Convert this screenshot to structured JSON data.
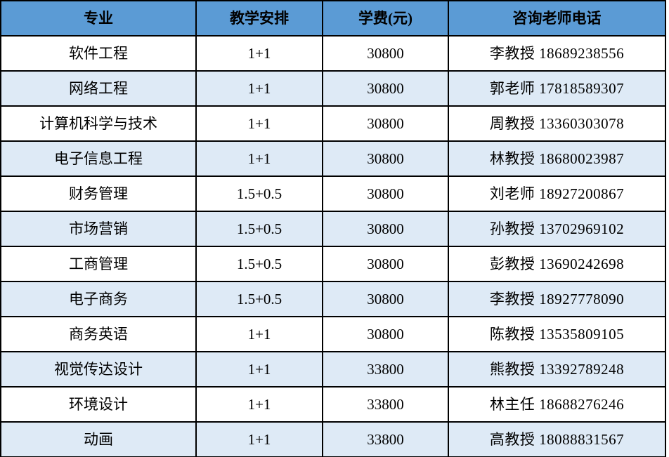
{
  "colors": {
    "header_bg": "#5B9BD5",
    "stripe_bg": "#DEEAF6",
    "row_bg": "#FFFFFF",
    "border": "#000000",
    "text": "#000000"
  },
  "table": {
    "columns": [
      {
        "key": "major",
        "label": "专业"
      },
      {
        "key": "arrangement",
        "label": "教学安排"
      },
      {
        "key": "tuition",
        "label": "学费(元)"
      },
      {
        "key": "contact",
        "label": "咨询老师电话"
      }
    ],
    "rows": [
      {
        "major": "软件工程",
        "arrangement": "1+1",
        "tuition": "30800",
        "contact": "李教授 18689238556"
      },
      {
        "major": "网络工程",
        "arrangement": "1+1",
        "tuition": "30800",
        "contact": "郭老师 17818589307"
      },
      {
        "major": "计算机科学与技术",
        "arrangement": "1+1",
        "tuition": "30800",
        "contact": "周教授 13360303078"
      },
      {
        "major": "电子信息工程",
        "arrangement": "1+1",
        "tuition": "30800",
        "contact": "林教授 18680023987"
      },
      {
        "major": "财务管理",
        "arrangement": "1.5+0.5",
        "tuition": "30800",
        "contact": "刘老师 18927200867"
      },
      {
        "major": "市场营销",
        "arrangement": "1.5+0.5",
        "tuition": "30800",
        "contact": "孙教授 13702969102"
      },
      {
        "major": "工商管理",
        "arrangement": "1.5+0.5",
        "tuition": "30800",
        "contact": "彭教授 13690242698"
      },
      {
        "major": "电子商务",
        "arrangement": "1.5+0.5",
        "tuition": "30800",
        "contact": "李教授 18927778090"
      },
      {
        "major": "商务英语",
        "arrangement": "1+1",
        "tuition": "30800",
        "contact": "陈教授 13535809105"
      },
      {
        "major": "视觉传达设计",
        "arrangement": "1+1",
        "tuition": "33800",
        "contact": "熊教授 13392789248"
      },
      {
        "major": "环境设计",
        "arrangement": "1+1",
        "tuition": "33800",
        "contact": "林主任 18688276246"
      },
      {
        "major": "动画",
        "arrangement": "1+1",
        "tuition": "33800",
        "contact": "高教授 18088831567"
      }
    ]
  }
}
